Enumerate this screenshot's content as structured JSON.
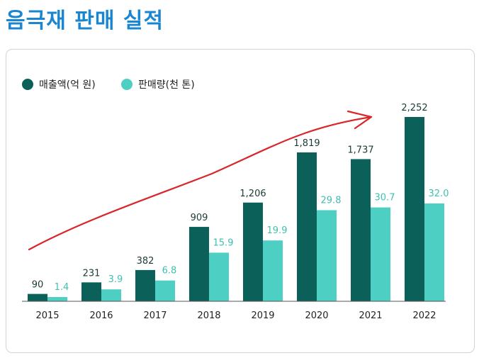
{
  "page": {
    "title": "음극재 판매 실적"
  },
  "chart_data": {
    "type": "bar",
    "title": "",
    "xlabel": "",
    "ylabel": "",
    "categories": [
      "2015",
      "2016",
      "2017",
      "2018",
      "2019",
      "2020",
      "2021",
      "2022"
    ],
    "series": [
      {
        "name": "매출액(억 원)",
        "color": "#0b6159",
        "values": [
          90,
          231,
          382,
          909,
          1206,
          1819,
          1737,
          2252
        ],
        "labels": [
          "90",
          "231",
          "382",
          "909",
          "1,206",
          "1,819",
          "1,737",
          "2,252"
        ]
      },
      {
        "name": "판매량(천 톤)",
        "color": "#4ecfc3",
        "values": [
          1.4,
          3.9,
          6.8,
          15.9,
          19.9,
          29.8,
          30.7,
          32.0
        ],
        "labels": [
          "1.4",
          "3.9",
          "6.8",
          "15.9",
          "19.9",
          "29.8",
          "30.7",
          "32.0"
        ]
      }
    ],
    "legend_position": "top-left",
    "grid": false,
    "annotation": "upward trend arrow",
    "arrow_color": "#d9262a"
  }
}
